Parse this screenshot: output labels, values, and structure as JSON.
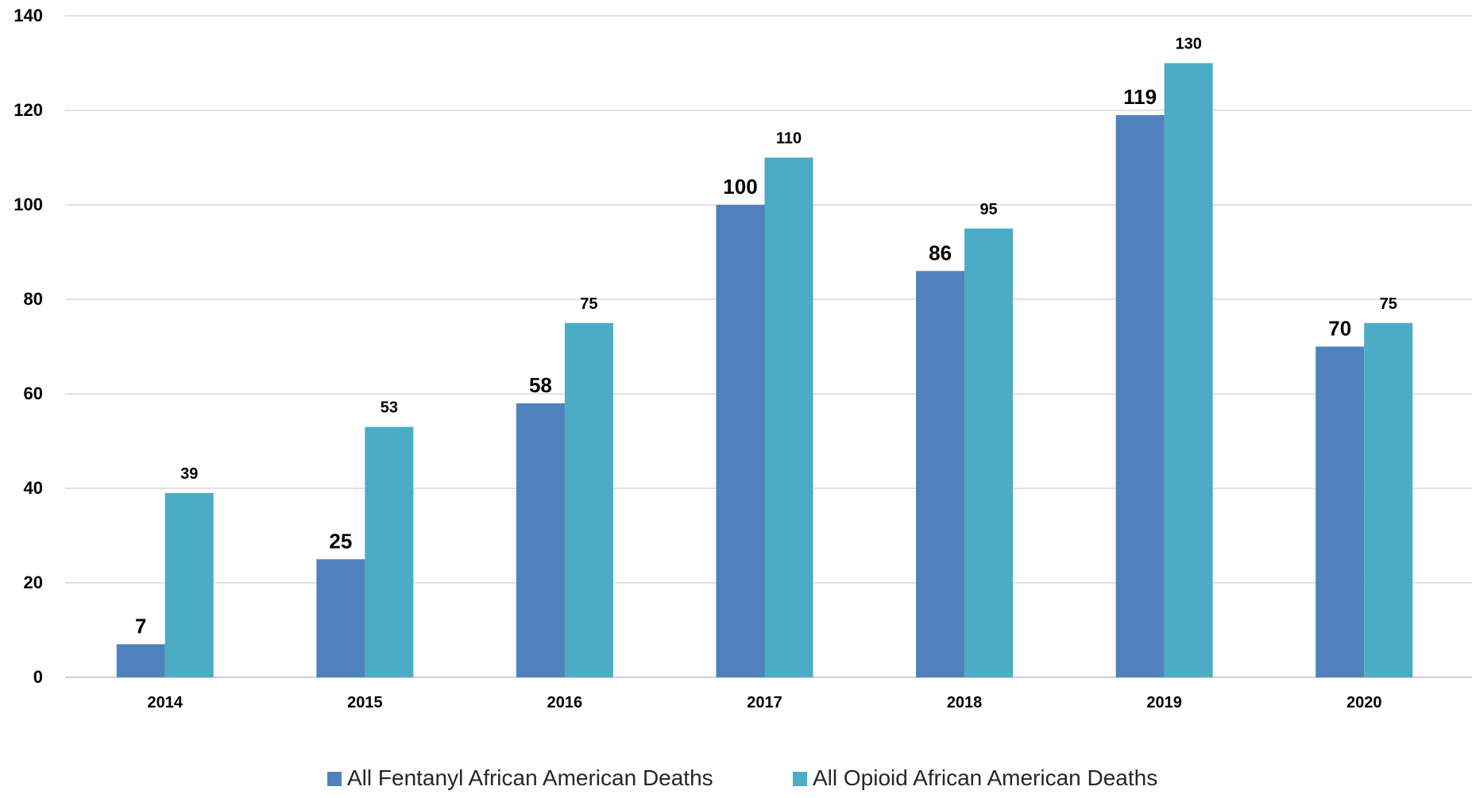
{
  "colors": {
    "series_1": "#4F81BD",
    "series_2": "#4BACC6",
    "grid": "#D9D9D9",
    "axis": "#BFBFBF",
    "text": "#000000"
  },
  "chart_data": {
    "type": "bar",
    "categories": [
      "2014",
      "2015",
      "2016",
      "2017",
      "2018",
      "2019",
      "2020"
    ],
    "series": [
      {
        "name": "All Fentanyl African American Deaths",
        "values": [
          7,
          25,
          58,
          100,
          86,
          119,
          70
        ]
      },
      {
        "name": "All Opioid African American Deaths",
        "values": [
          39,
          53,
          75,
          110,
          95,
          130,
          75
        ]
      }
    ],
    "title": "",
    "xlabel": "",
    "ylabel": "",
    "ylim": [
      0,
      140
    ],
    "y_ticks": [
      0,
      20,
      40,
      60,
      80,
      100,
      120,
      140
    ],
    "grid": true,
    "legend_position": "bottom"
  }
}
